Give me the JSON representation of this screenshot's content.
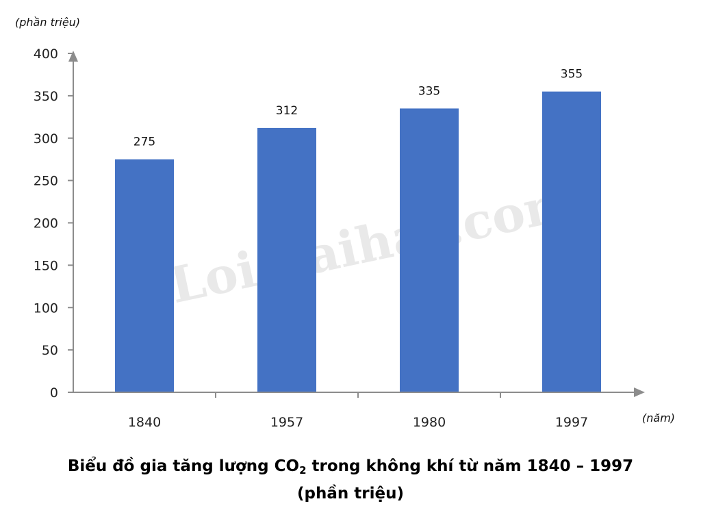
{
  "chart_data": {
    "type": "bar",
    "categories": [
      "1840",
      "1957",
      "1980",
      "1997"
    ],
    "values": [
      275,
      312,
      335,
      355
    ],
    "data_labels": [
      "275",
      "312",
      "335",
      "355"
    ],
    "ylim": [
      0,
      400
    ],
    "yticks": [
      0,
      50,
      100,
      150,
      200,
      250,
      300,
      350,
      400
    ],
    "y_unit": "(phần triệu)",
    "x_unit": "(năm)",
    "bar_color": "#4472C4",
    "axis_color": "#8c8c8c",
    "grid": false,
    "legend": "none",
    "title": {
      "part1": "Biểu đồ gia tăng lượng CO",
      "subscript": "2",
      "part2": " trong không khí từ năm 1840 – 1997",
      "line2": "(phần triệu)"
    }
  },
  "watermark": "Loigiaihay.com"
}
